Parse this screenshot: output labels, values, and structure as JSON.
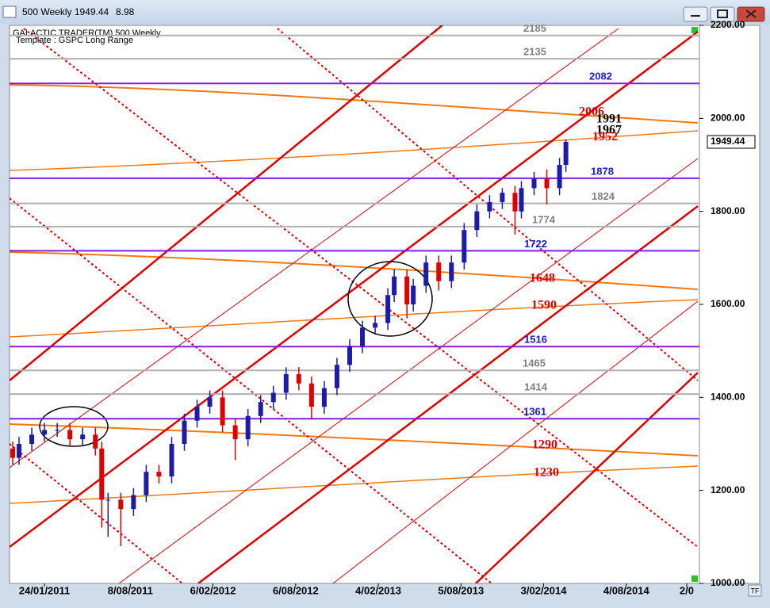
{
  "window": {
    "title": "500 Weekly 1949.44",
    "change": "8.98",
    "header": "GALACTIC TRADER(TM)   500 Weekly",
    "template": "Template : GSPC Long Range",
    "tf_button": "TF"
  },
  "chart_data": {
    "type": "candlestick",
    "x": [
      -10,
      -8,
      -4,
      0,
      4,
      8,
      12,
      16,
      18,
      20,
      24,
      28,
      32,
      36,
      40,
      44,
      48,
      52,
      56,
      60,
      64,
      68,
      72,
      76,
      80,
      84,
      88,
      92,
      96,
      100,
      104,
      108,
      110,
      114,
      116,
      120,
      124,
      128,
      132,
      136,
      140,
      144,
      148,
      150,
      154,
      158,
      162,
      164
    ],
    "open": [
      1290,
      1270,
      1300,
      1320,
      1330,
      1330,
      1310,
      1320,
      1290,
      1180,
      1180,
      1160,
      1190,
      1240,
      1230,
      1300,
      1350,
      1380,
      1400,
      1340,
      1310,
      1360,
      1390,
      1410,
      1450,
      1430,
      1380,
      1420,
      1470,
      1510,
      1550,
      1560,
      1620,
      1660,
      1600,
      1640,
      1690,
      1650,
      1690,
      1760,
      1800,
      1820,
      1840,
      1800,
      1850,
      1870,
      1850,
      1900
    ],
    "high": [
      1305,
      1315,
      1335,
      1345,
      1345,
      1345,
      1335,
      1335,
      1305,
      1195,
      1195,
      1205,
      1255,
      1255,
      1315,
      1365,
      1395,
      1415,
      1415,
      1355,
      1375,
      1405,
      1425,
      1465,
      1465,
      1445,
      1435,
      1485,
      1525,
      1565,
      1575,
      1635,
      1675,
      1675,
      1655,
      1705,
      1705,
      1705,
      1775,
      1815,
      1835,
      1850,
      1855,
      1865,
      1885,
      1890,
      1915,
      1955
    ],
    "low": [
      1255,
      1255,
      1285,
      1305,
      1315,
      1295,
      1295,
      1275,
      1120,
      1100,
      1080,
      1145,
      1175,
      1215,
      1215,
      1285,
      1335,
      1365,
      1325,
      1265,
      1295,
      1345,
      1375,
      1395,
      1415,
      1355,
      1365,
      1405,
      1455,
      1495,
      1535,
      1545,
      1605,
      1570,
      1585,
      1625,
      1630,
      1635,
      1675,
      1745,
      1785,
      1805,
      1750,
      1785,
      1835,
      1815,
      1835,
      1885
    ],
    "close": [
      1270,
      1300,
      1320,
      1330,
      1330,
      1310,
      1320,
      1290,
      1180,
      1180,
      1160,
      1190,
      1240,
      1230,
      1300,
      1350,
      1380,
      1400,
      1340,
      1310,
      1360,
      1390,
      1410,
      1450,
      1430,
      1380,
      1420,
      1470,
      1510,
      1550,
      1560,
      1620,
      1660,
      1600,
      1640,
      1690,
      1650,
      1690,
      1760,
      1800,
      1820,
      1840,
      1800,
      1850,
      1870,
      1850,
      1900,
      1949.44
    ],
    "up_color": "#1c1ca8",
    "down_color": "#e00000",
    "xlim": [
      -11,
      206
    ],
    "xticks": [
      {
        "value": 0,
        "label": "24/01/2011"
      },
      {
        "value": 27,
        "label": "8/08/2011"
      },
      {
        "value": 53,
        "label": "6/02/2012"
      },
      {
        "value": 79,
        "label": "6/08/2012"
      },
      {
        "value": 105,
        "label": "4/02/2013"
      },
      {
        "value": 131,
        "label": "5/08/2013"
      },
      {
        "value": 157,
        "label": "3/02/2014"
      },
      {
        "value": 183,
        "label": "4/08/2014"
      },
      {
        "value": 202,
        "label": "2/0"
      }
    ],
    "ylim": [
      1000,
      2200
    ],
    "yticks": [
      {
        "value": 1000,
        "label": "1000.00"
      },
      {
        "value": 1200,
        "label": "1200.00"
      },
      {
        "value": 1400,
        "label": "1400.00"
      },
      {
        "value": 1600,
        "label": "1600.00"
      },
      {
        "value": 1800,
        "label": "1800.00"
      },
      {
        "value": 2000,
        "label": "2000.00"
      },
      {
        "value": 2200,
        "label": "2200.00"
      }
    ],
    "last_price": {
      "value": 1949.44,
      "label": "1949.44"
    },
    "levels": [
      {
        "value": 2185,
        "color": "#808080"
      },
      {
        "value": 2135,
        "color": "#808080"
      },
      {
        "value": 2082,
        "color": "#1a1ad0"
      },
      {
        "value": 2006,
        "color": "#e00000"
      },
      {
        "value": 1991,
        "color": "#000000"
      },
      {
        "value": 1967,
        "color": "#000000"
      },
      {
        "value": 1952,
        "color": "#e00000"
      },
      {
        "value": 1878,
        "color": "#1a1ad0"
      },
      {
        "value": 1824,
        "color": "#808080"
      },
      {
        "value": 1774,
        "color": "#808080"
      },
      {
        "value": 1722,
        "color": "#1a1ad0"
      },
      {
        "value": 1648,
        "color": "#e00000"
      },
      {
        "value": 1590,
        "color": "#e00000"
      },
      {
        "value": 1516,
        "color": "#1a1ad0"
      },
      {
        "value": 1465,
        "color": "#808080"
      },
      {
        "value": 1414,
        "color": "#808080"
      },
      {
        "value": 1361,
        "color": "#1a1ad0"
      },
      {
        "value": 1290,
        "color": "#e00000"
      },
      {
        "value": 1230,
        "color": "#e00000"
      }
    ]
  }
}
